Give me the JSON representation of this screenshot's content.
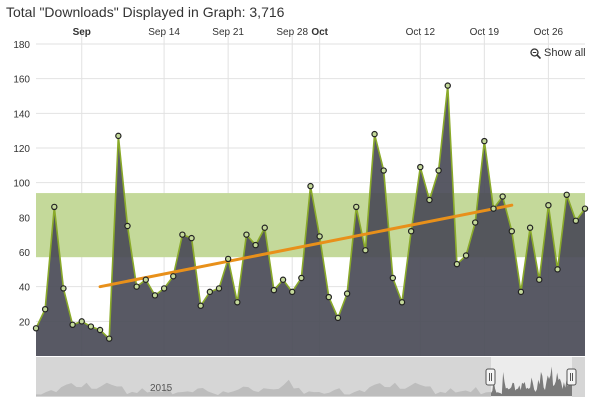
{
  "header": {
    "title": "Total \"Downloads\" Displayed in Graph: 3,716"
  },
  "toolbar": {
    "show_all_label": "Show all",
    "zoom_icon": "zoom-icon"
  },
  "navigator": {
    "year_label": "2015"
  },
  "colors": {
    "area_fill": "#4a4b57",
    "line": "#8aaa2a",
    "band": "#c4d99a",
    "trend": "#e8901a",
    "grid": "#e2e2e2",
    "navigator_bg": "#d6d6d6",
    "navigator_selected": "#ffffff"
  },
  "chart_data": {
    "type": "area",
    "title": "",
    "xlabel": "",
    "ylabel": "",
    "ylim": [
      0,
      180
    ],
    "yticks": [
      20,
      40,
      60,
      80,
      100,
      120,
      140,
      160,
      180
    ],
    "xticks": [
      {
        "label": "Sep",
        "bold": true,
        "day": 5
      },
      {
        "label": "Sep 14",
        "bold": false,
        "day": 14
      },
      {
        "label": "Sep 21",
        "bold": false,
        "day": 21
      },
      {
        "label": "Sep 28",
        "bold": false,
        "day": 28
      },
      {
        "label": "Oct",
        "bold": true,
        "day": 31
      },
      {
        "label": "Oct 12",
        "bold": false,
        "day": 42
      },
      {
        "label": "Oct 19",
        "bold": false,
        "day": 49
      },
      {
        "label": "Oct 26",
        "bold": false,
        "day": 56
      }
    ],
    "x_start_day": 0,
    "x_step_days": 1,
    "values": [
      16,
      27,
      86,
      39,
      18,
      20,
      17,
      15,
      10,
      127,
      75,
      40,
      44,
      35,
      39,
      46,
      70,
      68,
      29,
      37,
      39,
      56,
      31,
      70,
      64,
      74,
      38,
      44,
      37,
      45,
      98,
      69,
      34,
      22,
      36,
      86,
      61,
      128,
      107,
      45,
      31,
      72,
      109,
      90,
      107,
      156,
      53,
      58,
      77,
      124,
      85,
      92,
      72,
      37,
      74,
      44,
      87,
      50,
      93,
      78,
      85
    ],
    "band": {
      "low": 57,
      "high": 94
    },
    "trendline": {
      "from": [
        7,
        40
      ],
      "to": [
        52,
        87
      ]
    },
    "grid": true,
    "legend": "none"
  }
}
